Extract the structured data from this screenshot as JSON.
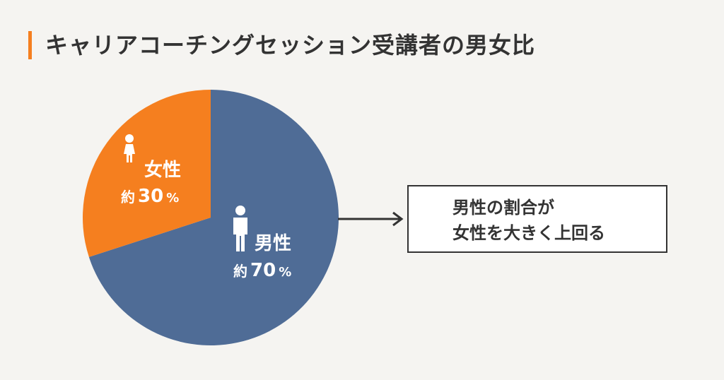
{
  "title": "キャリアコーチングセッション受講者の男女比",
  "colors": {
    "accent": "#f57f1f",
    "male": "#4f6c96",
    "female": "#f57f1f",
    "text": "#333333"
  },
  "chart_data": {
    "type": "pie",
    "title": "キャリアコーチングセッション受講者の男女比",
    "slices": [
      {
        "name": "男性",
        "prefix": "約",
        "value": 70,
        "unit": "%",
        "color": "#4f6c96",
        "icon": "man-icon"
      },
      {
        "name": "女性",
        "prefix": "約",
        "value": 30,
        "unit": "%",
        "color": "#f57f1f",
        "icon": "woman-icon"
      }
    ]
  },
  "callout": {
    "line1": "男性の割合が",
    "line2": "女性を大きく上回る"
  }
}
